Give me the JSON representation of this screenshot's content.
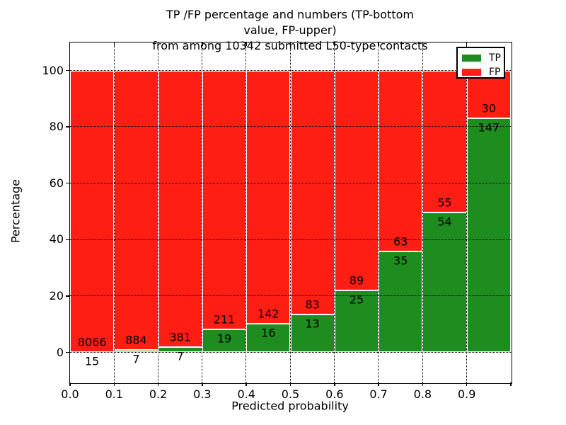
{
  "chart_data": {
    "type": "bar",
    "stacked": true,
    "title": "TP /FP percentage and numbers (TP-bottom value, FP-upper)\nfrom among 10342 submitted L50-type contacts",
    "xlabel": "Predicted probability",
    "ylabel": "Percentage",
    "total_contacts": 10342,
    "categories": [
      "0.0-0.1",
      "0.1-0.2",
      "0.2-0.3",
      "0.3-0.4",
      "0.4-0.5",
      "0.5-0.6",
      "0.6-0.7",
      "0.7-0.8",
      "0.8-0.9",
      "0.9-1.0"
    ],
    "bin_edges": [
      0.0,
      0.1,
      0.2,
      0.3,
      0.4,
      0.5,
      0.6,
      0.7,
      0.8,
      0.9,
      1.0
    ],
    "series": [
      {
        "name": "TP",
        "color": "#1e8c1e",
        "counts": [
          15,
          7,
          7,
          19,
          16,
          13,
          25,
          35,
          54,
          147
        ],
        "pct": [
          0.19,
          0.79,
          1.8,
          8.26,
          10.13,
          13.54,
          21.93,
          35.71,
          49.54,
          83.05
        ]
      },
      {
        "name": "FP",
        "color": "#fe1e14",
        "counts": [
          8066,
          884,
          381,
          211,
          142,
          83,
          89,
          63,
          55,
          30
        ],
        "pct": [
          99.81,
          99.21,
          98.2,
          91.74,
          89.87,
          86.46,
          78.07,
          64.29,
          50.46,
          16.95
        ]
      }
    ],
    "xticks": [
      "0.0",
      "0.1",
      "0.2",
      "0.3",
      "0.4",
      "0.5",
      "0.6",
      "0.7",
      "0.8",
      "0.9"
    ],
    "yticks": [
      0,
      20,
      40,
      60,
      80,
      100
    ],
    "xlim": [
      0.0,
      1.0
    ],
    "ylim": [
      -10.7,
      110
    ],
    "grid": "dotted",
    "legend_position": "upper right",
    "label_note": "TP count below segment boundary, FP count above it"
  }
}
